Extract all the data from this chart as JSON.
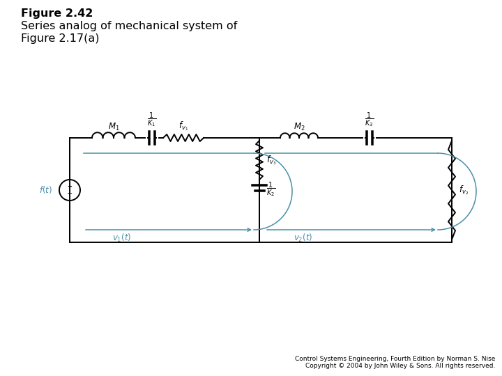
{
  "title_line1": "Figure 2.42",
  "title_line2": "Series analog of mechanical system of",
  "title_line3": "Figure 2.17(a)",
  "footer_line1": "Control Systems Engineering, Fourth Edition by Norman S. Nise",
  "footer_line2": "Copyright © 2004 by John Wiley & Sons. All rights reserved.",
  "circuit_color": "#000000",
  "loop_color": "#4a8fa8",
  "bg_color": "#ffffff",
  "title_fontsize": 11.5,
  "footer_fontsize": 6.5,
  "label_fontsize": 8.5,
  "circuit_lw": 1.4,
  "loop_lw": 1.1,
  "fig_width": 7.2,
  "fig_height": 5.4
}
